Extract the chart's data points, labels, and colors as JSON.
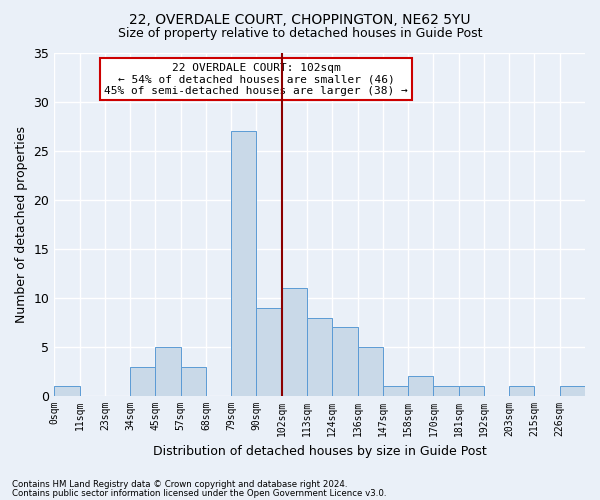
{
  "title": "22, OVERDALE COURT, CHOPPINGTON, NE62 5YU",
  "subtitle": "Size of property relative to detached houses in Guide Post",
  "xlabel": "Distribution of detached houses by size in Guide Post",
  "ylabel": "Number of detached properties",
  "bin_labels": [
    "0sqm",
    "11sqm",
    "23sqm",
    "34sqm",
    "45sqm",
    "57sqm",
    "68sqm",
    "79sqm",
    "90sqm",
    "102sqm",
    "113sqm",
    "124sqm",
    "136sqm",
    "147sqm",
    "158sqm",
    "170sqm",
    "181sqm",
    "192sqm",
    "203sqm",
    "215sqm",
    "226sqm"
  ],
  "bar_heights": [
    1,
    0,
    0,
    3,
    5,
    3,
    0,
    27,
    9,
    11,
    8,
    7,
    5,
    1,
    2,
    1,
    1,
    0,
    1,
    0,
    1
  ],
  "bar_color": "#c9d9e8",
  "bar_edge_color": "#5b9bd5",
  "vline_color": "#8b0000",
  "ylim": [
    0,
    35
  ],
  "yticks": [
    0,
    5,
    10,
    15,
    20,
    25,
    30,
    35
  ],
  "bg_color": "#eaf0f8",
  "grid_color": "#ffffff",
  "annotation_title": "22 OVERDALE COURT: 102sqm",
  "annotation_line1": "← 54% of detached houses are smaller (46)",
  "annotation_line2": "45% of semi-detached houses are larger (38) →",
  "annotation_box_color": "#ffffff",
  "annotation_box_edge": "#cc0000",
  "footer1": "Contains HM Land Registry data © Crown copyright and database right 2024.",
  "footer2": "Contains public sector information licensed under the Open Government Licence v3.0."
}
